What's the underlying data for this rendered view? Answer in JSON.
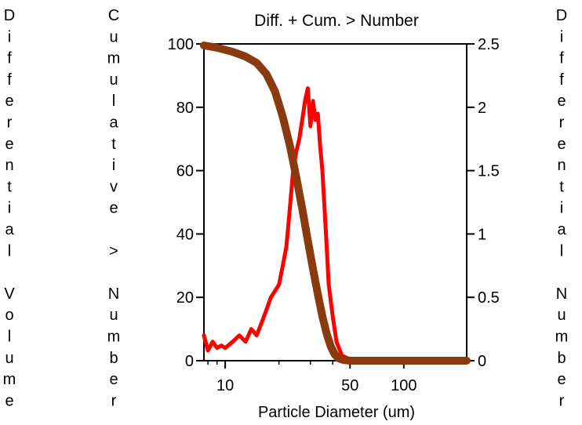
{
  "chart_data": {
    "type": "line",
    "title": "Diff. + Cum. > Number",
    "xlabel": "Particle Diameter (um)",
    "ylabel_left_outer": "Differential Volume",
    "ylabel_left_inner": "Cumulative > Number",
    "ylabel_right": "Differential Number",
    "x_scale": "log",
    "xlim": [
      7.6,
      225
    ],
    "x_ticks": [
      10,
      50,
      100
    ],
    "x_tick_labels": [
      "10",
      "50",
      "100"
    ],
    "ylim_left": [
      0,
      100
    ],
    "y_left_ticks": [
      0,
      20,
      40,
      60,
      80,
      100
    ],
    "y_left_tick_labels": [
      "0",
      "20",
      "40",
      "60",
      "80",
      "100"
    ],
    "ylim_right": [
      0,
      2.5
    ],
    "y_right_ticks": [
      0,
      0.5,
      1,
      1.5,
      2,
      2.5
    ],
    "y_right_tick_labels": [
      "0",
      "0.5",
      "1",
      "1.5",
      "2",
      "2.5"
    ],
    "grid": false,
    "series": [
      {
        "axis": "right",
        "color": "#ff0000",
        "x": [
          7.6,
          8.0,
          8.5,
          9.0,
          9.5,
          10,
          11,
          12,
          13,
          14,
          15,
          16,
          17,
          18,
          19,
          20,
          21,
          22,
          23,
          24,
          25,
          26,
          27,
          28,
          29,
          30,
          31,
          32,
          33,
          34,
          35,
          36,
          37,
          38,
          40,
          42,
          45,
          50,
          60,
          80,
          100,
          150,
          225
        ],
        "y": [
          0.2,
          0.08,
          0.15,
          0.1,
          0.12,
          0.1,
          0.15,
          0.2,
          0.15,
          0.25,
          0.2,
          0.3,
          0.4,
          0.5,
          0.55,
          0.6,
          0.75,
          0.9,
          1.2,
          1.5,
          1.65,
          1.75,
          1.9,
          2.05,
          2.15,
          1.85,
          2.05,
          1.9,
          1.95,
          1.7,
          1.5,
          1.2,
          0.9,
          0.6,
          0.35,
          0.15,
          0.04,
          0.01,
          0,
          0,
          0,
          0,
          0
        ]
      },
      {
        "axis": "left",
        "color": "#8b3a0f",
        "x": [
          7.6,
          9,
          11,
          13,
          15,
          17,
          19,
          21,
          23,
          25,
          27,
          29,
          31,
          33,
          35,
          37,
          39,
          41,
          43,
          46,
          50,
          60,
          100,
          225
        ],
        "y": [
          99.5,
          98.8,
          97.5,
          96,
          94,
          90.5,
          85,
          77,
          68,
          58,
          48,
          38,
          29,
          21,
          14,
          8.5,
          4.5,
          2,
          0.8,
          0.2,
          0,
          0,
          0,
          0
        ]
      }
    ]
  }
}
